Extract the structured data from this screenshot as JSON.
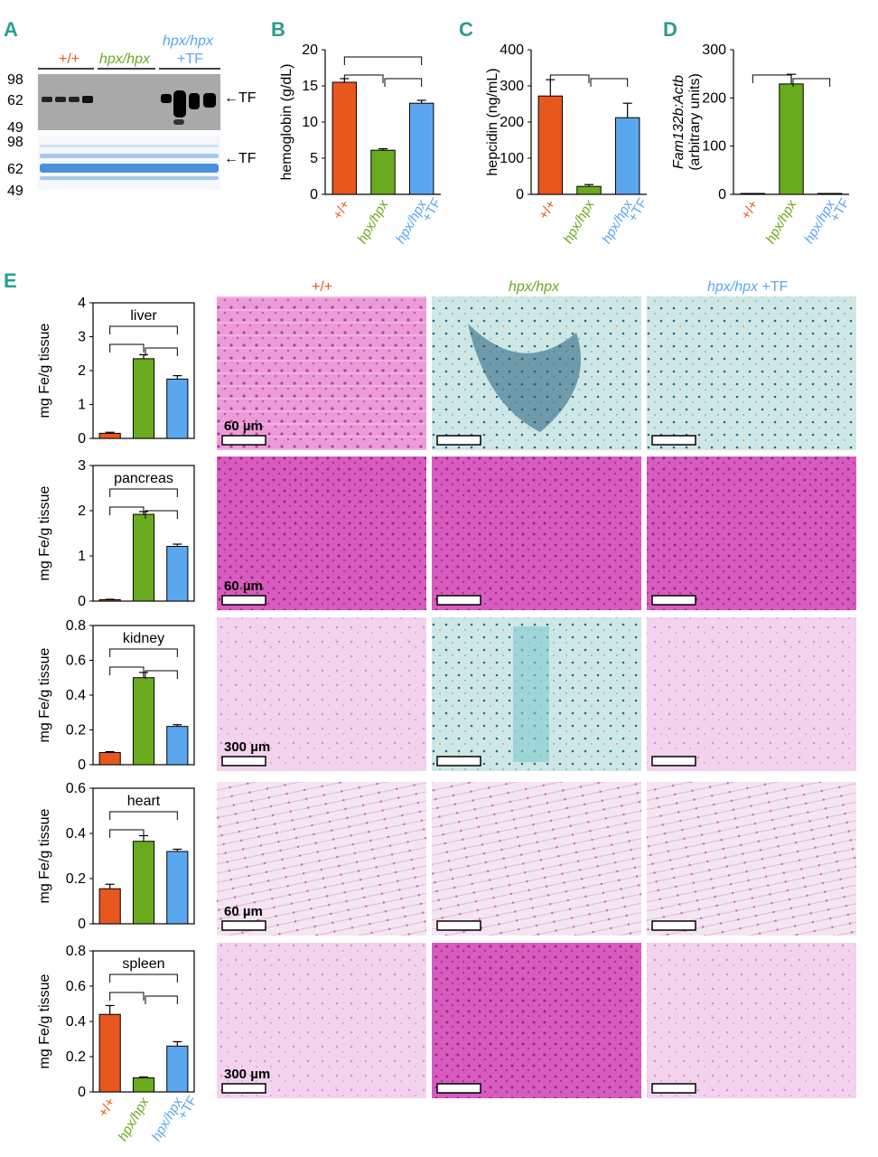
{
  "colors": {
    "wt": "#e8571e",
    "hpx": "#6aaa1e",
    "tf": "#5aa7f0",
    "panel_label": "#2a9d8f",
    "blot_bg": "#a9a9a9",
    "gel_band": "#3f86d6",
    "stain_pink": "#e48ad0",
    "stain_blue": "#1f5b7a"
  },
  "panel_labels": [
    "A",
    "B",
    "C",
    "D",
    "E"
  ],
  "group_labels": {
    "wt": "+/+",
    "hpx": "hpx/hpx",
    "tf_line1": "hpx/hpx",
    "tf_line2": "+TF",
    "tf_inline_prefix": "hpx/hpx",
    "tf_inline_suffix": " +TF"
  },
  "blot": {
    "mw_top": [
      "98",
      "62",
      "49"
    ],
    "mw_bottom": [
      "98",
      "62",
      "49"
    ],
    "band_label_top": "←TF",
    "band_label_bottom": "←TF",
    "lanes_per_group": 4
  },
  "histology": {
    "columns": [
      "+/+",
      "hpx/hpx",
      "hpx/hpx +TF"
    ],
    "scale_labels": [
      "60 µm",
      "60 µm",
      "300 µm",
      "60 µm",
      "300 µm"
    ]
  },
  "chart_data": [
    {
      "panel": "B",
      "type": "bar",
      "categories": [
        "+/+",
        "hpx/hpx",
        "hpx/hpx +TF"
      ],
      "values": [
        15.5,
        6.1,
        12.6
      ],
      "errors": [
        0.5,
        0.2,
        0.4
      ],
      "ylabel": "hemoglobin (g/dL)",
      "ylim": [
        0,
        20
      ],
      "yticks": [
        0,
        5,
        10,
        15,
        20
      ],
      "significance_brackets": [
        [
          0,
          2
        ],
        [
          0,
          1
        ],
        [
          1,
          2
        ]
      ]
    },
    {
      "panel": "C",
      "type": "bar",
      "categories": [
        "+/+",
        "hpx/hpx",
        "hpx/hpx +TF"
      ],
      "values": [
        272,
        22,
        212
      ],
      "errors": [
        45,
        5,
        40
      ],
      "ylabel": "hepcidin (ng/mL)",
      "ylim": [
        0,
        400
      ],
      "yticks": [
        0,
        100,
        200,
        300,
        400
      ],
      "significance_brackets": [
        [
          0,
          1
        ],
        [
          1,
          2
        ]
      ]
    },
    {
      "panel": "D",
      "type": "bar",
      "categories": [
        "+/+",
        "hpx/hpx",
        "hpx/hpx +TF"
      ],
      "values": [
        1,
        229,
        1
      ],
      "errors": [
        0,
        20,
        0
      ],
      "ylabel_line1": "Fam132b:Actb",
      "ylabel_line2": "(arbitrary units)",
      "ylim": [
        0,
        300
      ],
      "yticks": [
        0,
        100,
        200,
        300
      ],
      "significance_brackets": [
        [
          0,
          1
        ],
        [
          1,
          2
        ]
      ]
    },
    {
      "panel": "E-liver",
      "type": "bar",
      "title": "liver",
      "categories": [
        "+/+",
        "hpx/hpx",
        "hpx/hpx +TF"
      ],
      "values": [
        0.15,
        2.35,
        1.75
      ],
      "errors": [
        0.03,
        0.12,
        0.1
      ],
      "ylabel": "mg Fe/g tissue",
      "ylim": [
        0,
        4
      ],
      "yticks": [
        0,
        1,
        2,
        3,
        4
      ],
      "significance_brackets": [
        [
          0,
          2
        ],
        [
          0,
          1
        ],
        [
          1,
          2
        ]
      ]
    },
    {
      "panel": "E-pancreas",
      "type": "bar",
      "title": "pancreas",
      "categories": [
        "+/+",
        "hpx/hpx",
        "hpx/hpx +TF"
      ],
      "values": [
        0.03,
        1.92,
        1.21
      ],
      "errors": [
        0.01,
        0.06,
        0.05
      ],
      "ylabel": "mg Fe/g tissue",
      "ylim": [
        0,
        3
      ],
      "yticks": [
        0,
        1,
        2,
        3
      ],
      "significance_brackets": [
        [
          0,
          2
        ],
        [
          0,
          1
        ],
        [
          1,
          2
        ]
      ]
    },
    {
      "panel": "E-kidney",
      "type": "bar",
      "title": "kidney",
      "categories": [
        "+/+",
        "hpx/hpx",
        "hpx/hpx +TF"
      ],
      "values": [
        0.07,
        0.5,
        0.22
      ],
      "errors": [
        0.005,
        0.03,
        0.01
      ],
      "ylabel": "mg Fe/g tissue",
      "ylim": [
        0,
        0.8
      ],
      "yticks": [
        0,
        0.2,
        0.4,
        0.6,
        0.8
      ],
      "significance_brackets": [
        [
          0,
          2
        ],
        [
          0,
          1
        ],
        [
          1,
          2
        ]
      ]
    },
    {
      "panel": "E-heart",
      "type": "bar",
      "title": "heart",
      "categories": [
        "+/+",
        "hpx/hpx",
        "hpx/hpx +TF"
      ],
      "values": [
        0.155,
        0.365,
        0.32
      ],
      "errors": [
        0.02,
        0.025,
        0.01
      ],
      "ylabel": "mg Fe/g tissue",
      "ylim": [
        0,
        0.6
      ],
      "yticks": [
        0,
        0.2,
        0.4,
        0.6
      ],
      "significance_brackets": [
        [
          0,
          2
        ],
        [
          0,
          1
        ]
      ]
    },
    {
      "panel": "E-spleen",
      "type": "bar",
      "title": "spleen",
      "categories": [
        "+/+",
        "hpx/hpx",
        "hpx/hpx +TF"
      ],
      "values": [
        0.44,
        0.08,
        0.26
      ],
      "errors": [
        0.05,
        0.005,
        0.025
      ],
      "ylabel": "mg Fe/g tissue",
      "ylim": [
        0,
        0.8
      ],
      "yticks": [
        0,
        0.2,
        0.4,
        0.6,
        0.8
      ],
      "significance_brackets": [
        [
          0,
          2
        ],
        [
          0,
          1
        ],
        [
          1,
          2
        ]
      ]
    }
  ]
}
